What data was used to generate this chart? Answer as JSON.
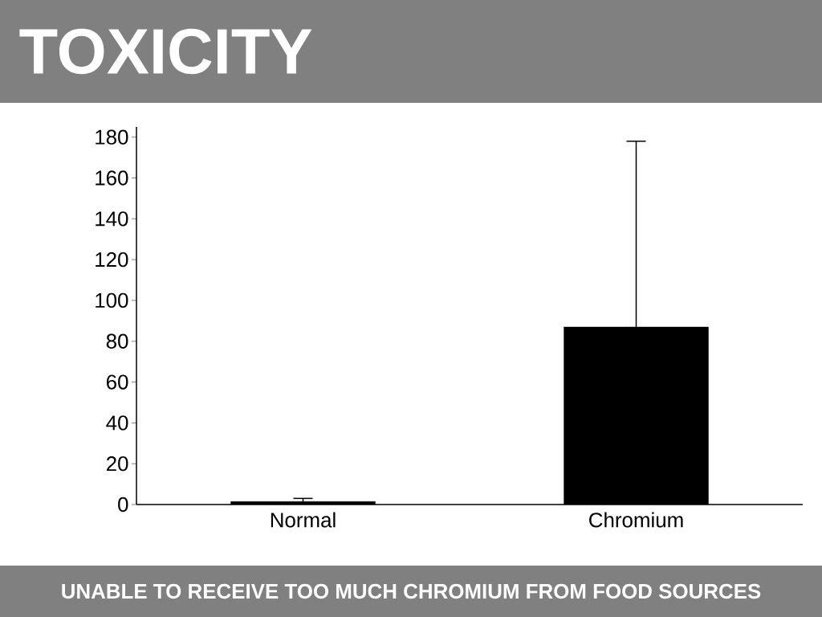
{
  "chart_data": {
    "type": "bar",
    "title": "TOXICITY",
    "subtitle": "UNABLE TO RECEIVE TOO MUCH CHROMIUM FROM FOOD SOURCES",
    "categories": [
      "Normal",
      "Chromium"
    ],
    "values": [
      1.5,
      87
    ],
    "errors": [
      1.5,
      91
    ],
    "color": "#000000",
    "ylim": [
      0,
      185
    ],
    "yticks": [
      0,
      20,
      40,
      60,
      80,
      100,
      120,
      140,
      160,
      180
    ],
    "grid": false
  }
}
